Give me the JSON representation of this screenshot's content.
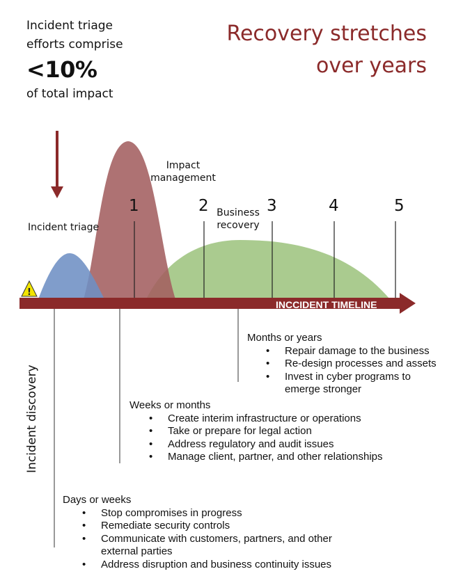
{
  "intro": {
    "line1": "Incident triage",
    "line2": "efforts comprise",
    "stat": "<10%",
    "line3": "of total impact"
  },
  "headline": {
    "line1": "Recovery stretches",
    "line2": "over years"
  },
  "curves": {
    "triage": {
      "label": "Incident triage",
      "color": "#6e8fc4"
    },
    "impact": {
      "label_line1": "Impact",
      "label_line2": "management",
      "color": "#a35f60"
    },
    "business": {
      "label_line1": "Business",
      "label_line2": "recovery",
      "color": "#9ec47f"
    }
  },
  "timeline": {
    "label": "INCCIDENT TIMELINE",
    "color": "#8b2a2a",
    "markers": [
      "1",
      "2",
      "3",
      "4",
      "5"
    ]
  },
  "warning_icon": {
    "icon": "warning-triangle-icon",
    "glyph": "!",
    "color": "#f2e500"
  },
  "discovery_label": "Incident discovery",
  "phases": [
    {
      "title": "Days or weeks",
      "items": [
        "Stop compromises in progress",
        "Remediate security controls",
        "Communicate with customers, partners, and other",
        "external parties",
        "Address disruption and business continuity issues"
      ]
    },
    {
      "title": "Weeks or months",
      "items": [
        "Create interim infrastructure or operations",
        "Take or prepare for legal action",
        "Address regulatory and audit issues",
        "Manage client, partner, and other relationships"
      ]
    },
    {
      "title": "Months or years",
      "items": [
        "Repair damage to the business",
        "Re-design processes and assets",
        "Invest in cyber programs to",
        "emerge stronger"
      ]
    }
  ]
}
